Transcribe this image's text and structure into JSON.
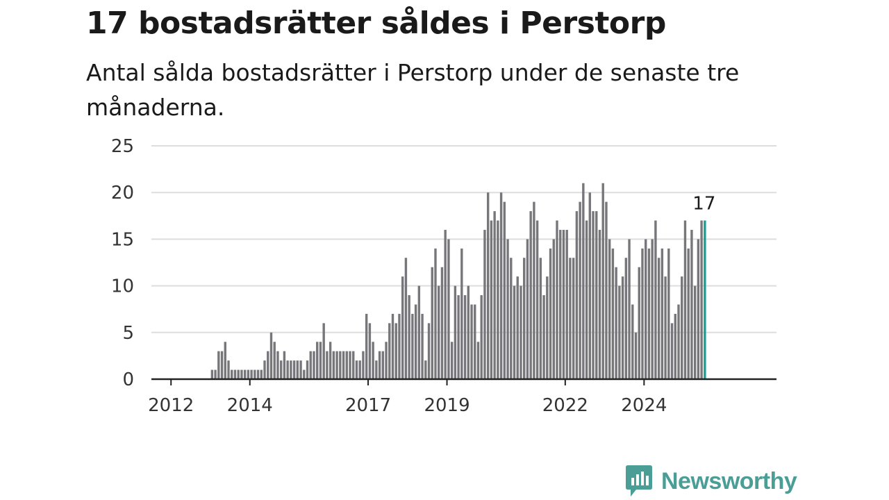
{
  "header": {
    "title": "17 bostadsrätter såldes i Perstorp",
    "subtitle": "Antal sålda bostadsrätter i Perstorp under de senaste tre månaderna."
  },
  "brand": {
    "name": "Newsworthy",
    "color": "#4a9e95"
  },
  "colors": {
    "bar": "#77767b",
    "highlight": "#1a9e96",
    "grid": "#dddddd",
    "axis": "#222222"
  },
  "chart_data": {
    "type": "bar",
    "title": "17 bostadsrätter såldes i Perstorp",
    "subtitle": "Antal sålda bostadsrätter i Perstorp under de senaste tre månaderna.",
    "xlabel": "",
    "ylabel": "",
    "x_axis": "monthly, one bar per month",
    "start_month": "2011-10",
    "x_tick_labels": [
      "2012",
      "2014",
      "2017",
      "2019",
      "2022",
      "2024"
    ],
    "y_ticks": [
      0,
      5,
      10,
      15,
      20,
      25
    ],
    "ylim": [
      0,
      25
    ],
    "grid": true,
    "annotation": {
      "label": "17",
      "value": 17
    },
    "values": [
      0,
      0,
      0,
      0,
      0,
      0,
      0,
      0,
      0,
      0,
      0,
      0,
      0,
      0,
      0,
      1,
      1,
      3,
      3,
      4,
      2,
      1,
      1,
      1,
      1,
      1,
      1,
      1,
      1,
      1,
      1,
      2,
      3,
      5,
      4,
      3,
      2,
      3,
      2,
      2,
      2,
      2,
      2,
      1,
      2,
      3,
      3,
      4,
      4,
      6,
      3,
      4,
      3,
      3,
      3,
      3,
      3,
      3,
      3,
      2,
      2,
      3,
      7,
      6,
      4,
      2,
      3,
      3,
      4,
      6,
      7,
      6,
      7,
      11,
      13,
      9,
      7,
      8,
      10,
      7,
      2,
      6,
      12,
      14,
      10,
      12,
      16,
      15,
      4,
      10,
      9,
      14,
      9,
      10,
      8,
      8,
      4,
      9,
      16,
      20,
      17,
      18,
      17,
      20,
      19,
      15,
      13,
      10,
      11,
      10,
      13,
      15,
      18,
      19,
      17,
      13,
      9,
      11,
      14,
      15,
      17,
      16,
      16,
      16,
      13,
      13,
      18,
      19,
      21,
      17,
      20,
      18,
      18,
      16,
      21,
      19,
      15,
      14,
      12,
      10,
      11,
      13,
      15,
      8,
      5,
      12,
      14,
      15,
      14,
      15,
      17,
      13,
      14,
      11,
      14,
      6,
      7,
      8,
      11,
      17,
      14,
      16,
      10,
      15,
      17,
      17
    ]
  }
}
